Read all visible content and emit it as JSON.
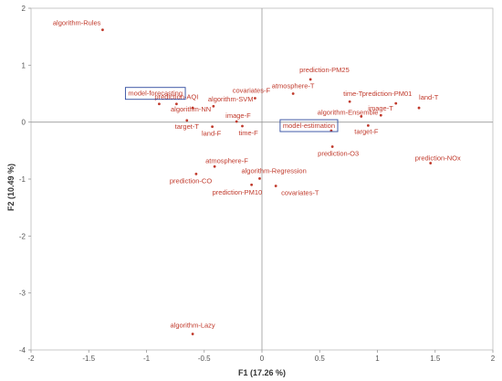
{
  "chart_data": {
    "type": "scatter",
    "title": "",
    "xlabel": "F1 (17.26 %)",
    "ylabel": "F2 (10.49 %)",
    "xlim": [
      -2,
      2
    ],
    "ylim": [
      -4,
      2
    ],
    "x_ticks": [
      "-2",
      "-1.5",
      "-1",
      "-0.5",
      "0",
      "0.5",
      "1",
      "1.5",
      "2"
    ],
    "y_ticks": [
      "-4",
      "-3",
      "-2",
      "-1",
      "0",
      "1",
      "2"
    ],
    "grid": false,
    "zero_lines": true,
    "colors": {
      "point": "#c0392b",
      "label": "#c0392b",
      "box": "#2e4a9e",
      "axis": "#999999"
    },
    "points": [
      {
        "label": "algorithm-Rules",
        "x": -1.38,
        "y": 1.62
      },
      {
        "label": "prediction-AQI",
        "x": -0.74,
        "y": 0.32
      },
      {
        "label": "algorithm-SVM",
        "x": -0.42,
        "y": 0.28
      },
      {
        "label": "algorithm-NN",
        "x": -0.6,
        "y": 0.25
      },
      {
        "label": "model-forecasting",
        "x": -0.89,
        "y": 0.32,
        "boxed": true
      },
      {
        "label": "target-T",
        "x": -0.65,
        "y": 0.03
      },
      {
        "label": "land-F",
        "x": -0.43,
        "y": -0.08
      },
      {
        "label": "image-F",
        "x": -0.22,
        "y": 0.01
      },
      {
        "label": "time-F",
        "x": -0.17,
        "y": -0.07
      },
      {
        "label": "covariates-F",
        "x": -0.06,
        "y": 0.42
      },
      {
        "label": "atmosphere-T",
        "x": 0.27,
        "y": 0.5
      },
      {
        "label": "prediction-PM25",
        "x": 0.42,
        "y": 0.75
      },
      {
        "label": "time-T",
        "x": 0.76,
        "y": 0.36
      },
      {
        "label": "prediction-PM01",
        "x": 1.16,
        "y": 0.33
      },
      {
        "label": "land-T",
        "x": 1.36,
        "y": 0.25
      },
      {
        "label": "algorithm-Ensemble",
        "x": 0.86,
        "y": 0.1
      },
      {
        "label": "image-T",
        "x": 1.03,
        "y": 0.12
      },
      {
        "label": "target-F",
        "x": 0.92,
        "y": -0.06
      },
      {
        "label": "model-estimation",
        "x": 0.6,
        "y": -0.15,
        "boxed": true
      },
      {
        "label": "prediction-O3",
        "x": 0.61,
        "y": -0.43
      },
      {
        "label": "prediction-NOx",
        "x": 1.46,
        "y": -0.72
      },
      {
        "label": "atmosphere-F",
        "x": -0.41,
        "y": -0.78
      },
      {
        "label": "prediction-CO",
        "x": -0.57,
        "y": -0.91
      },
      {
        "label": "algorithm-Regression",
        "x": -0.02,
        "y": -0.99
      },
      {
        "label": "prediction-PM10",
        "x": -0.09,
        "y": -1.1
      },
      {
        "label": "covariates-T",
        "x": 0.12,
        "y": -1.12
      },
      {
        "label": "algorithm-Lazy",
        "x": -0.6,
        "y": -3.72
      }
    ]
  }
}
